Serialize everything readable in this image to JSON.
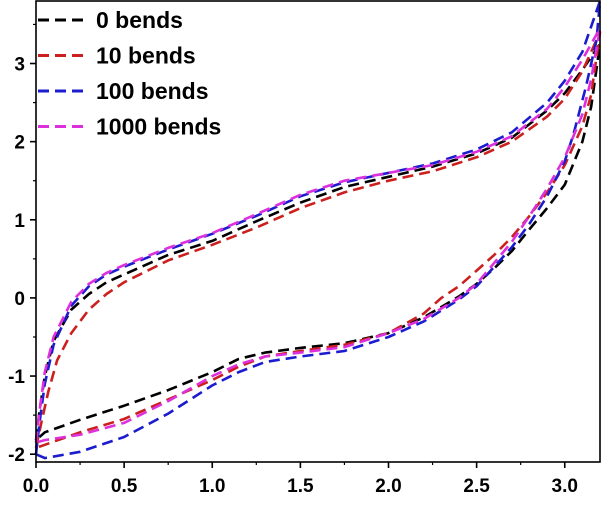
{
  "chart_data": {
    "type": "line",
    "xlim": [
      0,
      3.2
    ],
    "ylim": [
      -2.1,
      3.8
    ],
    "x_ticks": [
      0,
      0.5,
      1.0,
      1.5,
      2.0,
      2.5,
      3.0
    ],
    "x_tick_labels": [
      "0.0",
      "0.5",
      "1.0",
      "1.5",
      "2.0",
      "2.5",
      "3.0"
    ],
    "y_ticks": [
      -2,
      -1,
      0,
      1,
      2,
      3
    ],
    "y_tick_labels": [
      "-2",
      "-1",
      "0",
      "1",
      "2",
      "3"
    ],
    "grid": false,
    "legend_position": "top-left",
    "line_style": "dashed",
    "series": [
      {
        "name": "0 bends",
        "color": "#000000",
        "x": [
          0.0,
          0.02,
          0.05,
          0.1,
          0.2,
          0.3,
          0.4,
          0.5,
          0.75,
          1.0,
          1.25,
          1.5,
          1.75,
          2.0,
          2.25,
          2.5,
          2.7,
          2.9,
          3.0,
          3.1,
          3.2,
          3.15,
          3.1,
          3.0,
          2.9,
          2.8,
          2.7,
          2.6,
          2.5,
          2.4,
          2.2,
          2.0,
          1.75,
          1.5,
          1.3,
          1.15,
          1.0,
          0.75,
          0.5,
          0.25,
          0.05,
          0.0
        ],
        "y": [
          -1.82,
          -1.45,
          -1.0,
          -0.55,
          -0.15,
          0.05,
          0.2,
          0.3,
          0.55,
          0.73,
          0.98,
          1.22,
          1.42,
          1.55,
          1.68,
          1.85,
          2.05,
          2.4,
          2.62,
          2.92,
          3.25,
          2.45,
          2.0,
          1.45,
          1.15,
          0.88,
          0.6,
          0.38,
          0.18,
          0.02,
          -0.25,
          -0.45,
          -0.58,
          -0.64,
          -0.7,
          -0.78,
          -0.95,
          -1.18,
          -1.38,
          -1.56,
          -1.72,
          -1.82
        ]
      },
      {
        "name": "10 bends",
        "color": "#cc2020",
        "x": [
          0.0,
          0.03,
          0.07,
          0.12,
          0.2,
          0.3,
          0.4,
          0.5,
          0.75,
          1.0,
          1.25,
          1.5,
          1.75,
          2.0,
          2.25,
          2.5,
          2.7,
          2.9,
          3.0,
          3.1,
          3.2,
          3.15,
          3.1,
          3.0,
          2.9,
          2.8,
          2.7,
          2.6,
          2.5,
          2.4,
          2.3,
          2.2,
          2.0,
          1.75,
          1.5,
          1.3,
          1.15,
          1.0,
          0.75,
          0.5,
          0.25,
          0.05,
          0.0
        ],
        "y": [
          -1.92,
          -1.6,
          -1.2,
          -0.8,
          -0.45,
          -0.15,
          0.05,
          0.2,
          0.48,
          0.68,
          0.9,
          1.15,
          1.35,
          1.5,
          1.62,
          1.8,
          2.0,
          2.32,
          2.55,
          2.9,
          3.4,
          2.6,
          2.2,
          1.7,
          1.35,
          1.05,
          0.78,
          0.55,
          0.35,
          0.15,
          0.0,
          -0.2,
          -0.45,
          -0.6,
          -0.68,
          -0.75,
          -0.88,
          -1.05,
          -1.3,
          -1.55,
          -1.72,
          -1.88,
          -1.92
        ]
      },
      {
        "name": "100 bends",
        "color": "#1c1ccf",
        "x": [
          0.0,
          0.02,
          0.05,
          0.1,
          0.2,
          0.3,
          0.4,
          0.5,
          0.75,
          1.0,
          1.25,
          1.5,
          1.75,
          2.0,
          2.25,
          2.5,
          2.7,
          2.9,
          3.0,
          3.1,
          3.2,
          3.18,
          3.12,
          3.05,
          3.0,
          2.9,
          2.8,
          2.7,
          2.6,
          2.5,
          2.4,
          2.2,
          2.0,
          1.75,
          1.5,
          1.3,
          1.15,
          1.0,
          0.75,
          0.5,
          0.25,
          0.05,
          0.0
        ],
        "y": [
          -2.0,
          -1.6,
          -1.1,
          -0.6,
          -0.1,
          0.15,
          0.3,
          0.4,
          0.62,
          0.82,
          1.05,
          1.3,
          1.48,
          1.6,
          1.72,
          1.9,
          2.12,
          2.5,
          2.78,
          3.15,
          3.8,
          3.3,
          2.7,
          2.1,
          1.75,
          1.3,
          0.95,
          0.65,
          0.4,
          0.15,
          -0.02,
          -0.3,
          -0.5,
          -0.68,
          -0.75,
          -0.82,
          -0.95,
          -1.12,
          -1.48,
          -1.78,
          -1.97,
          -2.05,
          -2.0
        ]
      },
      {
        "name": "1000 bends",
        "color": "#dd30dd",
        "x": [
          0.0,
          0.02,
          0.05,
          0.1,
          0.2,
          0.3,
          0.4,
          0.5,
          0.75,
          1.0,
          1.25,
          1.5,
          1.75,
          2.0,
          2.25,
          2.5,
          2.7,
          2.9,
          3.0,
          3.1,
          3.2,
          3.15,
          3.1,
          3.0,
          2.9,
          2.8,
          2.7,
          2.6,
          2.5,
          2.4,
          2.2,
          2.0,
          1.75,
          1.5,
          1.3,
          1.15,
          1.0,
          0.75,
          0.5,
          0.25,
          0.05,
          0.0
        ],
        "y": [
          -1.85,
          -1.45,
          -0.95,
          -0.5,
          -0.05,
          0.18,
          0.32,
          0.42,
          0.64,
          0.83,
          1.07,
          1.32,
          1.5,
          1.6,
          1.7,
          1.87,
          2.07,
          2.42,
          2.7,
          3.05,
          3.45,
          2.8,
          2.35,
          1.8,
          1.4,
          1.05,
          0.72,
          0.45,
          0.18,
          0.0,
          -0.27,
          -0.45,
          -0.63,
          -0.7,
          -0.75,
          -0.85,
          -1.0,
          -1.32,
          -1.6,
          -1.75,
          -1.82,
          -1.85
        ]
      }
    ]
  }
}
